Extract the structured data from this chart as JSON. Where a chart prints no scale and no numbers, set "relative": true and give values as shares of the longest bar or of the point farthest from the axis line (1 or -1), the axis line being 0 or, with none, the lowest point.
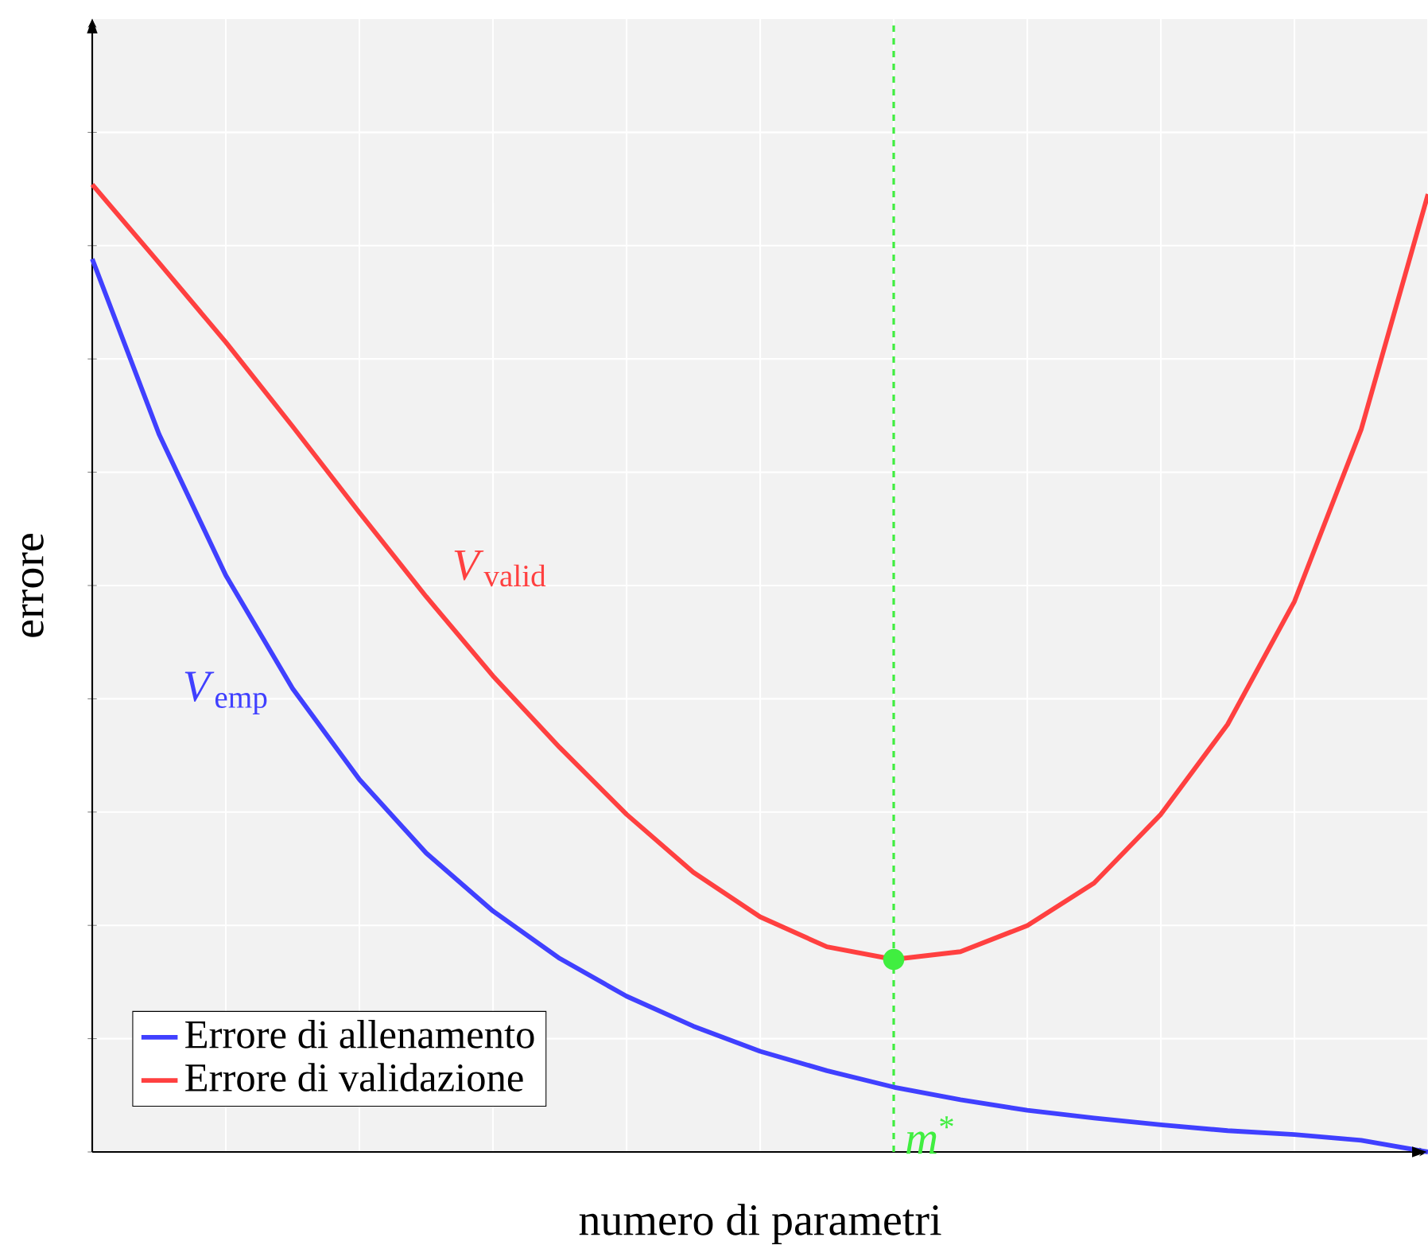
{
  "chart_data": {
    "type": "line",
    "xlabel": "numero di parametri",
    "ylabel": "errore",
    "relative": true,
    "grid": true,
    "legend": "bottom left",
    "categories": [
      null,
      null,
      null,
      null,
      null,
      null,
      null,
      null,
      null,
      null,
      null,
      null,
      null,
      null,
      null,
      null,
      null,
      null,
      null,
      null,
      null
    ],
    "series": [
      {
        "name": "Errore di allenamento",
        "color": "#4040ff",
        "values": [
          0.923,
          0.742,
          0.596,
          0.479,
          0.385,
          0.309,
          0.249,
          0.2,
          0.161,
          0.13,
          0.104,
          0.084,
          0.067,
          0.054,
          0.043,
          0.035,
          0.028,
          0.022,
          0.018,
          0.012,
          0.0
        ]
      },
      {
        "name": "Errore di validazione",
        "color": "#ff4040",
        "values": [
          1.0,
          0.919,
          0.837,
          0.75,
          0.661,
          0.574,
          0.492,
          0.418,
          0.349,
          0.289,
          0.243,
          0.212,
          0.199,
          0.207,
          0.234,
          0.278,
          0.349,
          0.442,
          0.569,
          0.747,
          0.99
        ]
      }
    ],
    "ref_lines": [
      {
        "axis": "x",
        "label": "*m*$^{*}$",
        "color": "#40ee40",
        "line_style": "dashed"
      }
    ],
    "annotations": [
      "*V*$_{emp}$",
      "*V*$_{valid}$"
    ]
  }
}
